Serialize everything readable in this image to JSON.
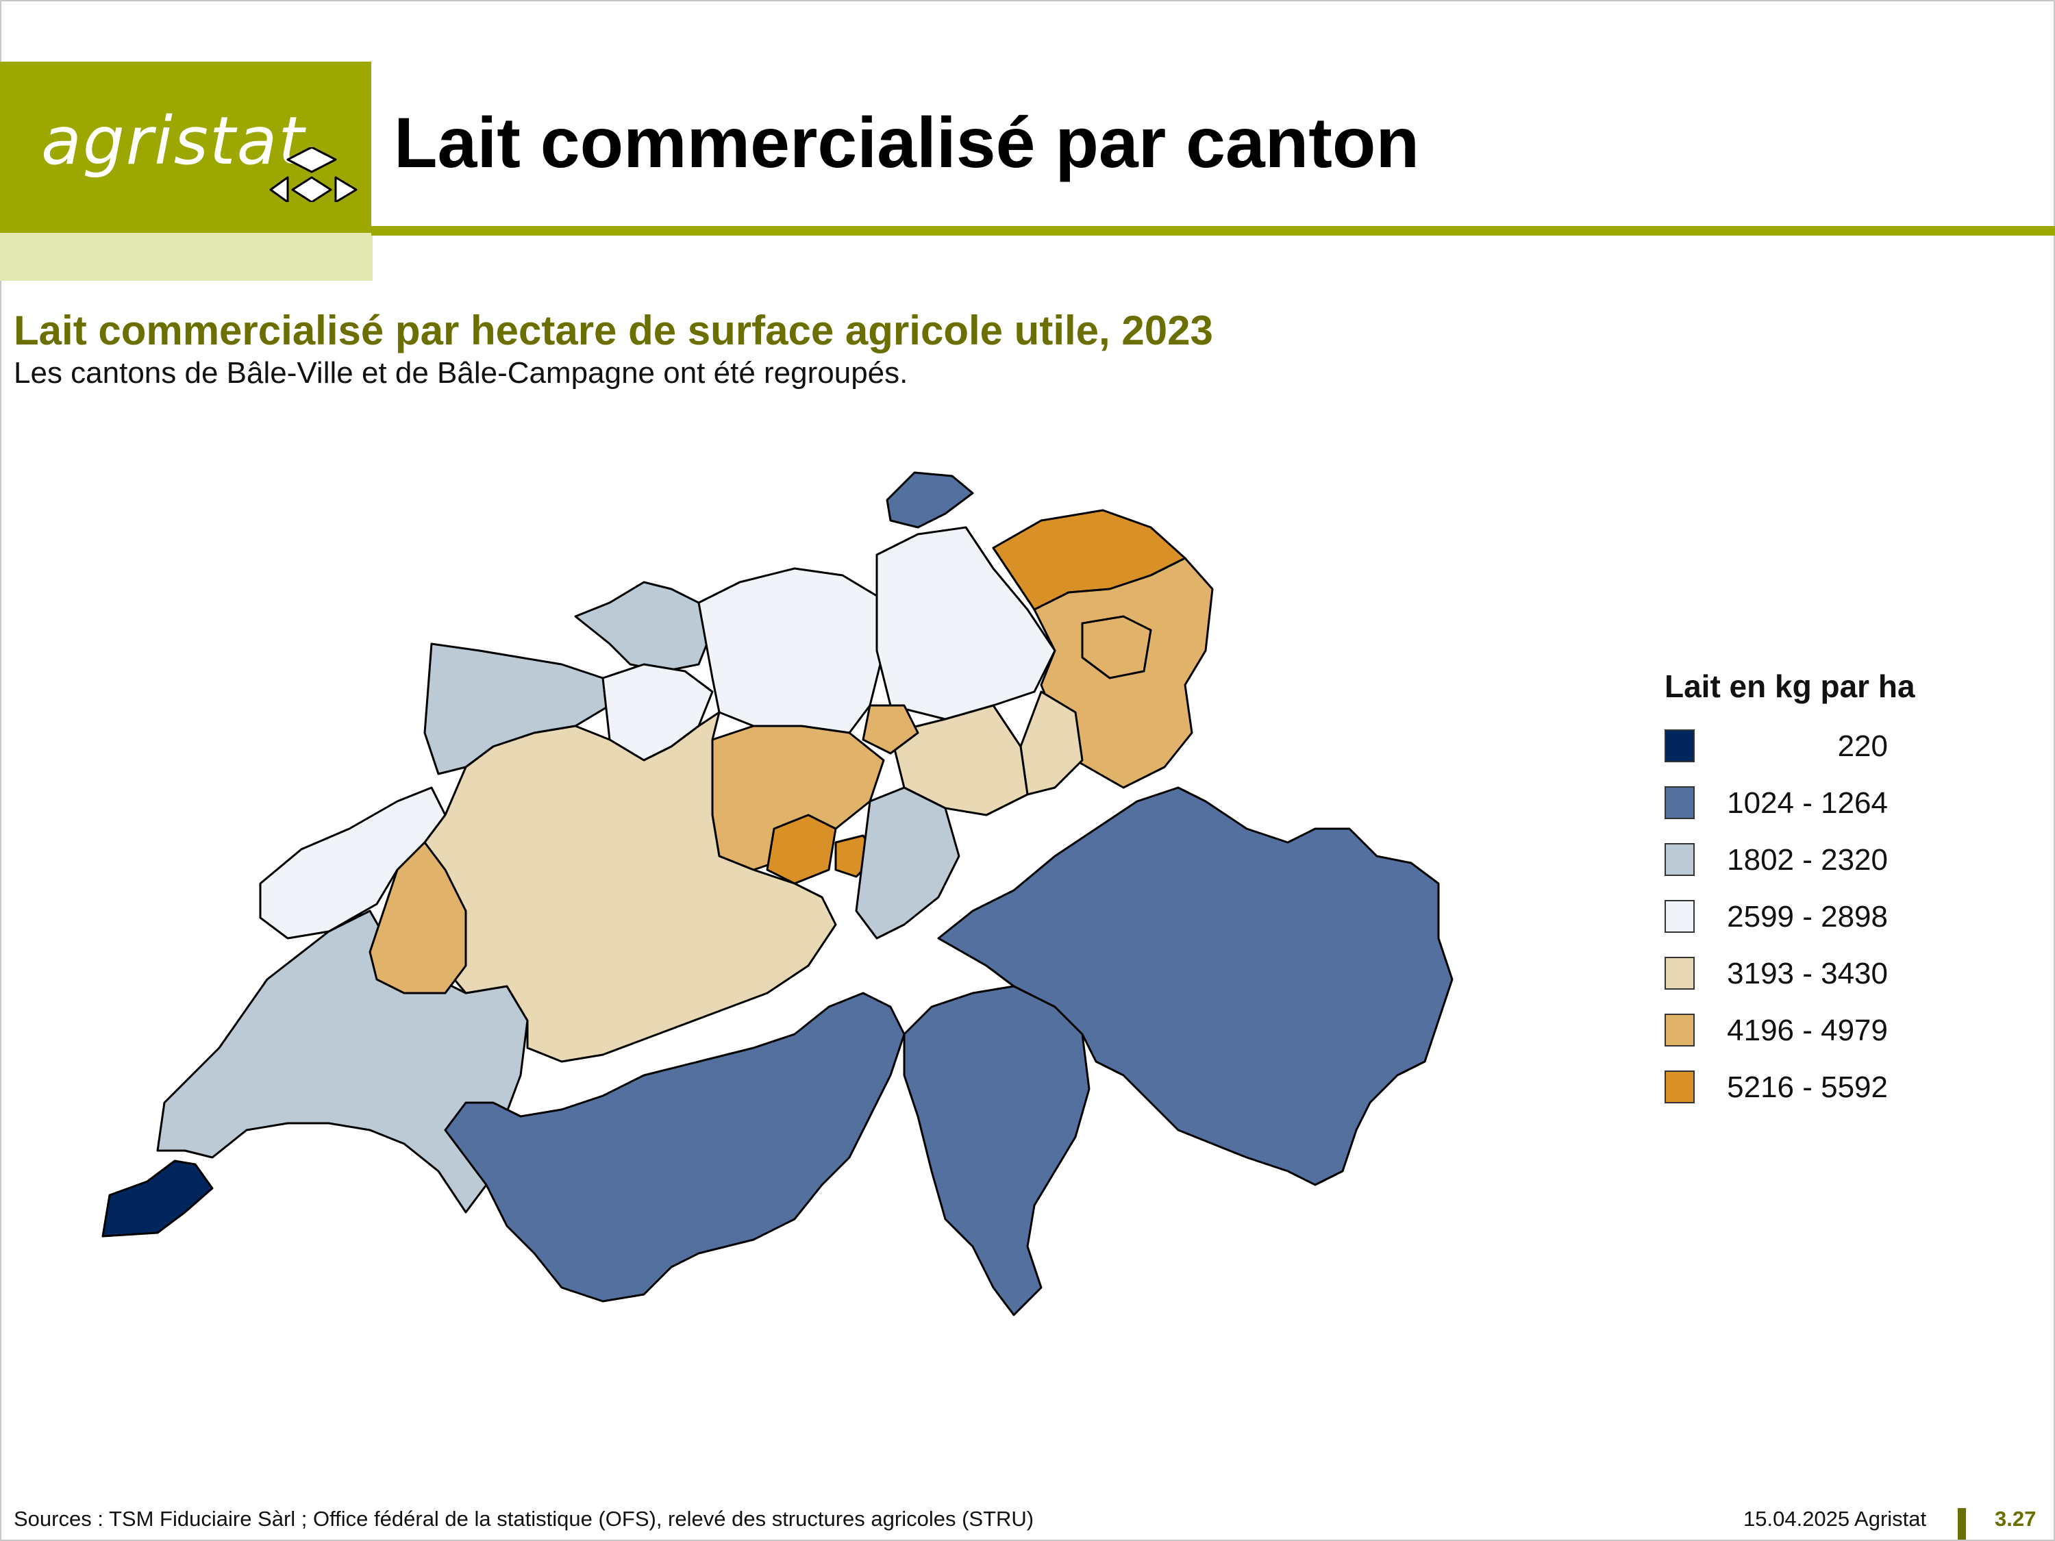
{
  "header": {
    "logo_text": "agristat",
    "title": "Lait commercialisé par canton"
  },
  "map": {
    "subtitle": "Lait commercialisé par hectare de surface agricole utile, 2023",
    "note": "Les cantons de Bâle-Ville et de Bâle-Campagne ont été regroupés.",
    "legend": {
      "title": "Lait en kg par ha",
      "classes": [
        {
          "label": "220",
          "color": "#00265e"
        },
        {
          "label": "1024 - 1264",
          "color": "#54709e"
        },
        {
          "label": "1802 - 2320",
          "color": "#bccad6"
        },
        {
          "label": "2599 - 2898",
          "color": "#f0f4f8"
        },
        {
          "label": "3193 - 3430",
          "color": "#e8d8b4"
        },
        {
          "label": "4196 - 4979",
          "color": "#e1b26a"
        },
        {
          "label": "5216 - 5592",
          "color": "#d99026"
        }
      ]
    }
  },
  "footer": {
    "sources": "Sources : TSM Fiduciaire Sàrl ; Office fédéral de la statistique (OFS), relevé des structures agricoles (STRU)",
    "date": "15.04.2025 Agristat",
    "page": "3.27"
  }
}
